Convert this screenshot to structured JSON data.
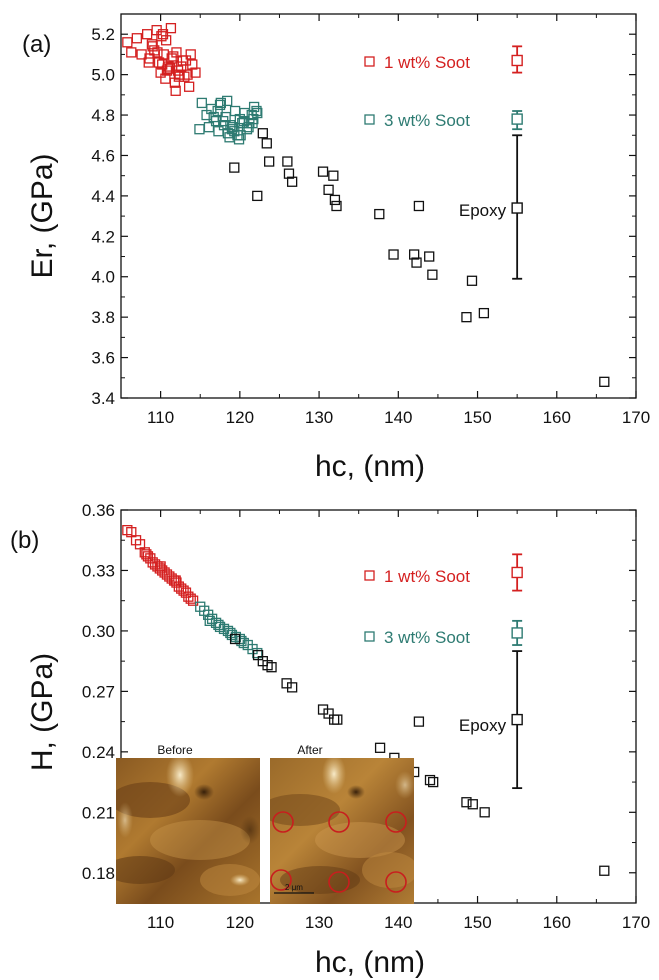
{
  "chart_data": [
    {
      "type": "scatter",
      "panel_label": "(a)",
      "xlabel": "hc, (nm)",
      "ylabel": "Er, (GPa)",
      "xlim": [
        105,
        170
      ],
      "ylim": [
        3.4,
        5.3
      ],
      "xticks": [
        110,
        120,
        130,
        140,
        150,
        160,
        170
      ],
      "yticks": [
        3.4,
        3.6,
        3.8,
        4.0,
        4.2,
        4.4,
        4.6,
        4.8,
        5.0,
        5.2
      ],
      "ytick_labels": [
        "3.4",
        "3.6",
        "3.8",
        "4.0",
        "4.2",
        "4.4",
        "4.6",
        "4.8",
        "5.0",
        "5.2"
      ],
      "legend_placement": "right",
      "series": [
        {
          "name": "1 wt% Soot",
          "color": "#d42020",
          "marker": "open-square",
          "x": [
            105.8,
            106.3,
            107.0,
            107.6,
            108.3,
            108.9,
            109.5,
            110.1,
            110.7,
            111.3,
            108.6,
            109.2,
            109.8,
            110.4,
            111.0,
            111.6,
            112.2,
            112.8,
            113.4,
            114.0,
            110.0,
            110.6,
            111.2,
            111.8,
            112.4,
            113.0,
            113.6,
            109.0,
            109.6,
            110.2,
            110.8,
            111.4,
            112.0,
            112.6,
            113.2,
            113.8,
            114.4,
            108.5,
            110.9,
            111.9,
            112.3,
            110.3
          ],
          "y": [
            5.16,
            5.11,
            5.18,
            5.1,
            5.2,
            5.15,
            5.22,
            5.19,
            5.17,
            5.23,
            5.08,
            5.12,
            5.06,
            5.1,
            5.04,
            5.09,
            5.02,
            5.07,
            5.0,
            5.05,
            5.01,
            4.98,
            5.03,
            4.96,
            5.0,
            4.99,
            4.94,
            5.14,
            5.11,
            5.05,
            5.02,
            5.08,
            5.11,
            5.04,
            5.07,
            5.1,
            5.01,
            5.06,
            5.03,
            4.92,
            4.99,
            5.2
          ]
        },
        {
          "name": "3 wt% Soot",
          "color": "#2e7b72",
          "marker": "open-square",
          "x": [
            115.2,
            115.8,
            116.4,
            117.0,
            117.6,
            118.2,
            118.8,
            119.4,
            120.0,
            120.6,
            121.2,
            121.8,
            116.1,
            116.7,
            117.3,
            117.9,
            118.5,
            119.1,
            119.7,
            120.3,
            120.9,
            121.5,
            122.1,
            117.5,
            118.0,
            118.7,
            119.3,
            119.9,
            120.5,
            121.1,
            121.7,
            122.2,
            114.9,
            118.4,
            119.0,
            120.1,
            121.6,
            117.2
          ],
          "y": [
            4.86,
            4.8,
            4.83,
            4.77,
            4.86,
            4.79,
            4.75,
            4.82,
            4.78,
            4.81,
            4.76,
            4.84,
            4.74,
            4.79,
            4.72,
            4.77,
            4.71,
            4.74,
            4.7,
            4.76,
            4.73,
            4.8,
            4.82,
            4.85,
            4.75,
            4.69,
            4.72,
            4.68,
            4.77,
            4.74,
            4.78,
            4.81,
            4.73,
            4.87,
            4.73,
            4.7,
            4.76,
            4.82
          ]
        },
        {
          "name": "Epoxy",
          "color": "#111111",
          "marker": "open-square",
          "x": [
            119.3,
            122.2,
            122.9,
            123.4,
            123.7,
            126.0,
            126.2,
            126.6,
            130.5,
            131.2,
            132.0,
            132.2,
            131.8,
            137.6,
            139.4,
            142.0,
            142.3,
            142.6,
            143.9,
            144.3,
            148.6,
            149.3,
            150.8,
            166.0
          ],
          "y": [
            4.54,
            4.4,
            4.71,
            4.66,
            4.57,
            4.57,
            4.51,
            4.47,
            4.52,
            4.43,
            4.38,
            4.35,
            4.5,
            4.31,
            4.11,
            4.11,
            4.07,
            4.35,
            4.1,
            4.01,
            3.8,
            3.98,
            3.82,
            3.48
          ]
        }
      ],
      "error_bars": [
        {
          "name": "1 wt% Soot",
          "color": "#d42020",
          "x": 155,
          "y": 5.07,
          "low": 5.01,
          "high": 5.14
        },
        {
          "name": "3 wt% Soot",
          "color": "#2e7b72",
          "x": 155,
          "y": 4.78,
          "low": 4.73,
          "high": 4.82
        },
        {
          "name": "Epoxy",
          "color": "#111111",
          "x": 155,
          "y": 4.34,
          "low": 3.99,
          "high": 4.7
        }
      ]
    },
    {
      "type": "scatter",
      "panel_label": "(b)",
      "xlabel": "hc, (nm)",
      "ylabel": "H, (GPa)",
      "xlim": [
        105,
        170
      ],
      "ylim": [
        0.165,
        0.36
      ],
      "xticks": [
        110,
        120,
        130,
        140,
        150,
        160,
        170
      ],
      "yticks": [
        0.18,
        0.21,
        0.24,
        0.27,
        0.3,
        0.33,
        0.36
      ],
      "ytick_labels": [
        "0.18",
        "0.21",
        "0.24",
        "0.27",
        "0.30",
        "0.33",
        "0.36"
      ],
      "legend_placement": "right",
      "series": [
        {
          "name": "1 wt% Soot",
          "color": "#d42020",
          "marker": "open-square",
          "x": [
            105.8,
            106.3,
            106.9,
            107.4,
            108.0,
            108.4,
            108.7,
            109.0,
            109.3,
            109.6,
            109.9,
            110.2,
            110.5,
            110.8,
            111.1,
            111.4,
            111.7,
            112.0,
            112.3,
            112.6,
            112.9,
            113.2,
            113.5,
            113.8,
            114.1,
            108.2,
            110.0,
            111.9
          ],
          "y": [
            0.35,
            0.349,
            0.345,
            0.343,
            0.339,
            0.337,
            0.336,
            0.334,
            0.333,
            0.332,
            0.331,
            0.33,
            0.329,
            0.328,
            0.327,
            0.326,
            0.325,
            0.324,
            0.322,
            0.321,
            0.32,
            0.319,
            0.317,
            0.316,
            0.315,
            0.338,
            0.332,
            0.325
          ]
        },
        {
          "name": "3 wt% Soot",
          "color": "#2e7b72",
          "marker": "open-square",
          "x": [
            115.0,
            115.5,
            116.0,
            116.5,
            117.0,
            117.5,
            118.0,
            118.5,
            119.0,
            119.5,
            120.0,
            120.5,
            121.0,
            121.6,
            122.2,
            116.2,
            117.3,
            118.8,
            120.2
          ],
          "y": [
            0.312,
            0.31,
            0.308,
            0.306,
            0.304,
            0.302,
            0.301,
            0.3,
            0.298,
            0.297,
            0.296,
            0.294,
            0.293,
            0.291,
            0.289,
            0.305,
            0.303,
            0.299,
            0.295
          ]
        },
        {
          "name": "Epoxy",
          "color": "#111111",
          "marker": "open-square",
          "x": [
            119.4,
            122.3,
            122.9,
            123.5,
            124.0,
            125.9,
            126.6,
            130.5,
            131.2,
            131.9,
            132.3,
            137.7,
            139.5,
            142.0,
            142.6,
            144.0,
            144.4,
            148.6,
            149.4,
            150.9,
            166.0
          ],
          "y": [
            0.296,
            0.288,
            0.285,
            0.283,
            0.282,
            0.274,
            0.272,
            0.261,
            0.259,
            0.256,
            0.256,
            0.242,
            0.237,
            0.23,
            0.255,
            0.226,
            0.225,
            0.215,
            0.214,
            0.21,
            0.181
          ]
        }
      ],
      "error_bars": [
        {
          "name": "1 wt% Soot",
          "color": "#d42020",
          "x": 155,
          "y": 0.329,
          "low": 0.32,
          "high": 0.338
        },
        {
          "name": "3 wt% Soot",
          "color": "#2e7b72",
          "x": 155,
          "y": 0.299,
          "low": 0.293,
          "high": 0.305
        },
        {
          "name": "Epoxy",
          "color": "#111111",
          "x": 155,
          "y": 0.256,
          "low": 0.222,
          "high": 0.29
        }
      ],
      "inset": {
        "left_label": "Before",
        "right_label": "After",
        "scale_bar_label": "2 μm",
        "marker_color": "#c81e1e"
      }
    }
  ]
}
